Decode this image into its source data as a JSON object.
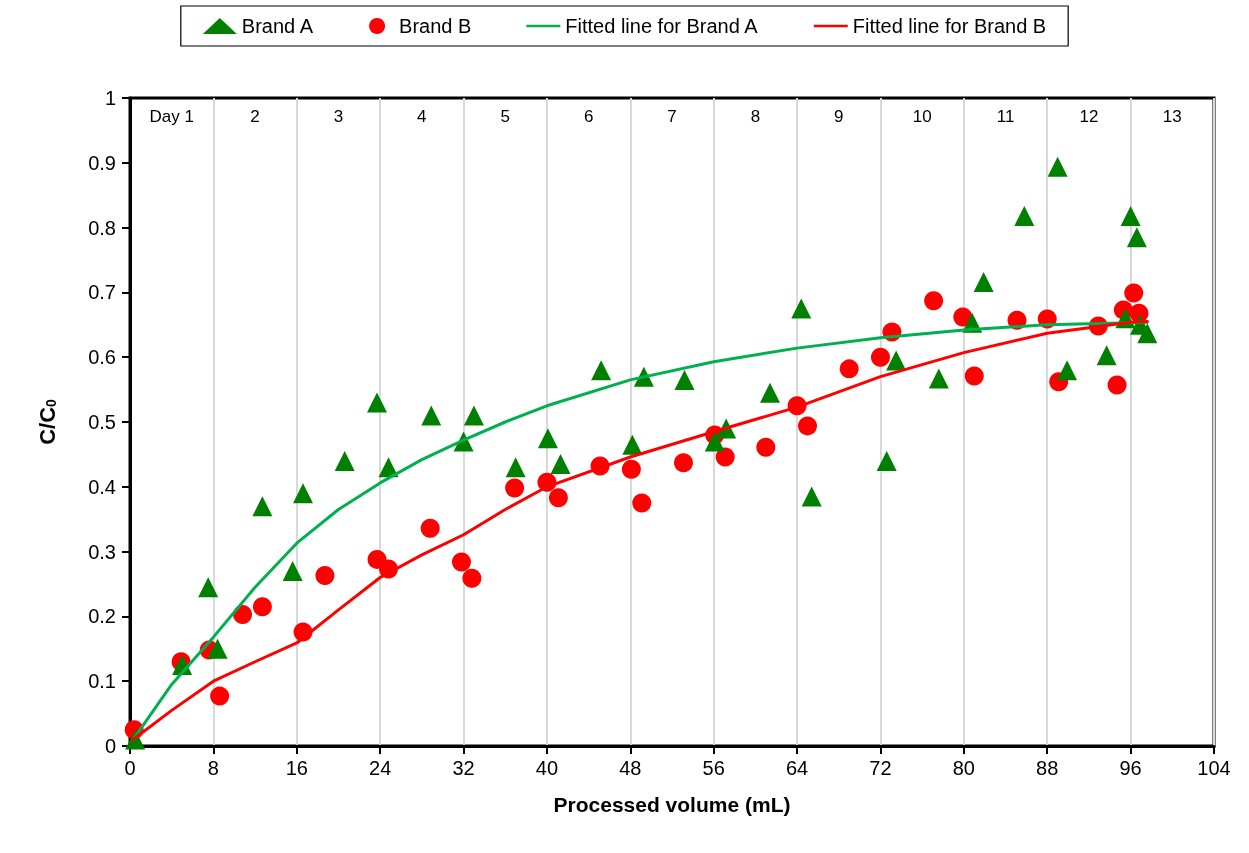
{
  "chart_data": {
    "type": "scatter",
    "xlabel": "Processed volume (mL)",
    "ylabel": "C/C$_{0}$",
    "xlim": [
      0,
      104
    ],
    "xticks": [
      0,
      8,
      16,
      24,
      32,
      40,
      48,
      56,
      64,
      72,
      80,
      88,
      96,
      104
    ],
    "ylim": [
      0,
      1
    ],
    "yticks": [
      0,
      0.1,
      0.2,
      0.3,
      0.4,
      0.5,
      0.6,
      0.7,
      0.8,
      0.9,
      1
    ],
    "grid": "x",
    "legend": "top",
    "annotations": [
      "Day 1",
      "2",
      "3",
      "4",
      "5",
      "6",
      "7",
      "8",
      "9",
      "10",
      "11",
      "12",
      "13"
    ],
    "series": [
      {
        "name": "Brand A",
        "marker": "triangle",
        "color": "#008000",
        "x": [
          0.5,
          5,
          7.5,
          8.4,
          12.7,
          15.6,
          16.6,
          20.6,
          23.7,
          24.8,
          28.9,
          32,
          33,
          37,
          40.1,
          41.3,
          45.2,
          48.2,
          49.3,
          53.2,
          56.1,
          57.2,
          61.4,
          64.4,
          65.4,
          72.6,
          73.5,
          77.6,
          80.8,
          81.9,
          85.8,
          89,
          89.9,
          93.7,
          95.5,
          96,
          96.6,
          96.9,
          97.6
        ],
        "values": [
          0.01,
          0.125,
          0.245,
          0.15,
          0.37,
          0.27,
          0.39,
          0.44,
          0.53,
          0.43,
          0.51,
          0.47,
          0.51,
          0.43,
          0.475,
          0.435,
          0.58,
          0.465,
          0.57,
          0.565,
          0.47,
          0.49,
          0.545,
          0.675,
          0.385,
          0.44,
          0.595,
          0.567,
          0.653,
          0.716,
          0.818,
          0.894,
          0.58,
          0.603,
          0.66,
          0.818,
          0.785,
          0.65,
          0.637
        ]
      },
      {
        "name": "Brand B",
        "marker": "circle",
        "color": "#ff0000",
        "x": [
          0.4,
          4.9,
          7.6,
          8.6,
          10.8,
          12.7,
          16.6,
          18.7,
          23.7,
          24.8,
          28.8,
          31.8,
          32.8,
          36.9,
          40,
          41.1,
          45.1,
          48.1,
          49.1,
          53.1,
          56.1,
          57.1,
          61,
          64,
          65,
          69,
          72,
          73.1,
          77.1,
          79.9,
          81,
          85.1,
          88,
          89.1,
          92.9,
          94.7,
          95.3,
          96.3,
          96.8
        ],
        "values": [
          0.025,
          0.13,
          0.148,
          0.077,
          0.203,
          0.215,
          0.176,
          0.263,
          0.288,
          0.273,
          0.336,
          0.284,
          0.259,
          0.398,
          0.407,
          0.383,
          0.432,
          0.427,
          0.375,
          0.437,
          0.48,
          0.446,
          0.461,
          0.525,
          0.494,
          0.582,
          0.6,
          0.639,
          0.687,
          0.662,
          0.571,
          0.657,
          0.659,
          0.562,
          0.648,
          0.557,
          0.673,
          0.699,
          0.668
        ]
      },
      {
        "name": "Fitted line for Brand A",
        "type": "line",
        "marker": "none",
        "color": "#00b050",
        "x": [
          0.3,
          4,
          8,
          12,
          16,
          20,
          24,
          28,
          32,
          36,
          40,
          48,
          56,
          64,
          72,
          80,
          88,
          96,
          97.6
        ],
        "values": [
          0.01,
          0.095,
          0.168,
          0.245,
          0.313,
          0.365,
          0.406,
          0.442,
          0.472,
          0.5,
          0.525,
          0.565,
          0.593,
          0.614,
          0.63,
          0.642,
          0.65,
          0.653,
          0.654
        ]
      },
      {
        "name": "Fitted line for Brand B",
        "type": "line",
        "marker": "none",
        "color": "#ff0000",
        "x": [
          0.3,
          4,
          8,
          12,
          16,
          20,
          24,
          28,
          32,
          36,
          40,
          48,
          56,
          64,
          72,
          80,
          88,
          96,
          97.6
        ],
        "values": [
          0.01,
          0.055,
          0.1,
          0.13,
          0.159,
          0.21,
          0.26,
          0.295,
          0.326,
          0.365,
          0.4,
          0.446,
          0.485,
          0.523,
          0.57,
          0.607,
          0.637,
          0.654,
          0.655
        ]
      }
    ]
  }
}
